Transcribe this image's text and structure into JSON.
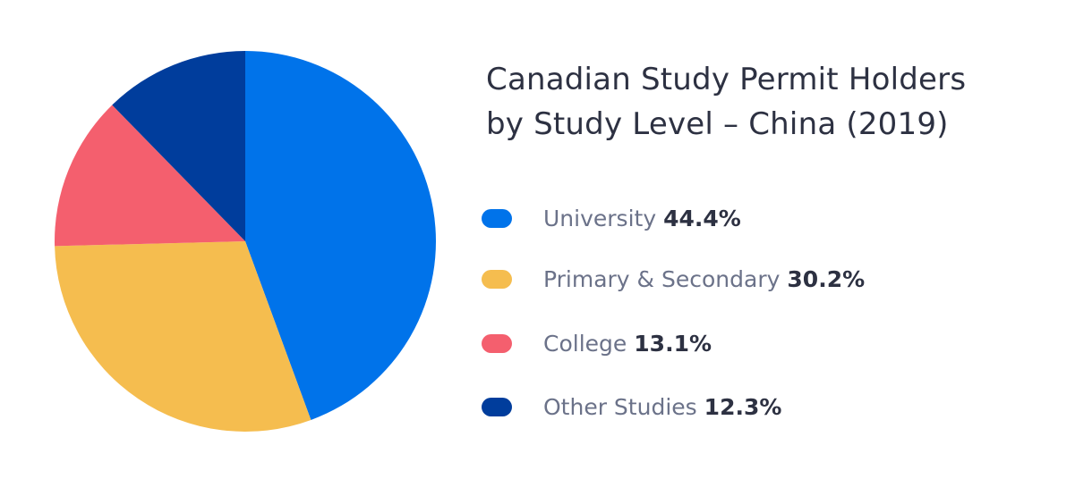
{
  "chart_data": {
    "type": "pie",
    "title_lines": [
      "Canadian Study Permit Holders",
      "by Study Level – China (2019)"
    ],
    "slices": [
      {
        "label": "University",
        "value": 44.4,
        "display": "44.4%",
        "color": "#0073ea"
      },
      {
        "label": "Primary & Secondary",
        "value": 30.2,
        "display": "30.2%",
        "color": "#f5bd4f"
      },
      {
        "label": "College",
        "value": 13.1,
        "display": "13.1%",
        "color": "#f45f6e"
      },
      {
        "label": "Other Studies",
        "value": 12.3,
        "display": "12.3%",
        "color": "#003d9c"
      }
    ],
    "legend_position": "right",
    "start_angle": "12 o'clock",
    "direction": "clockwise"
  }
}
